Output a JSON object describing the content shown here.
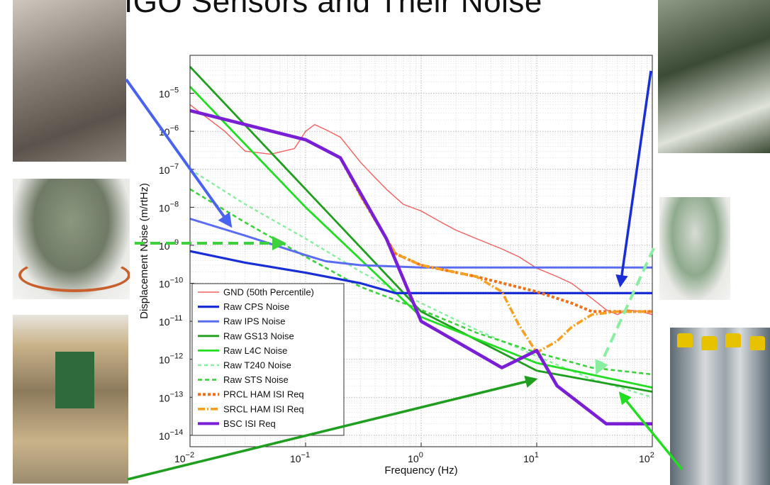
{
  "slide": {
    "title": "LIGO Sensors and Their Noise"
  },
  "photos": [
    {
      "name": "photo-gs13-seismometer",
      "colors": [
        "#8a8178",
        "#cfc7bd",
        "#5b534b"
      ]
    },
    {
      "name": "photo-sts-seismometer-dome",
      "colors": [
        "#6f7a66",
        "#8c977f",
        "#c7602c"
      ]
    },
    {
      "name": "photo-cps-electronics",
      "colors": [
        "#c9b38a",
        "#2f6b3a",
        "#8c7a5c"
      ]
    },
    {
      "name": "photo-t240-stack",
      "colors": [
        "#3b4a34",
        "#8e9a86",
        "#dfe3da"
      ]
    },
    {
      "name": "photo-t240-dome",
      "colors": [
        "#8eaa8d",
        "#d7dbd3",
        "#f3f3f1"
      ]
    },
    {
      "name": "photo-l4c-geophones",
      "colors": [
        "#9aa4aa",
        "#e7c200",
        "#5d6a73"
      ]
    }
  ],
  "chart_data": {
    "type": "line",
    "xlabel": "Frequency (Hz)",
    "ylabel": "Displacement Noise (m/rtHz)",
    "x_scale": "log",
    "y_scale": "log",
    "xlim": [
      0.01,
      100
    ],
    "ylim": [
      5e-15,
      0.0001
    ],
    "grid": true,
    "legend_position": "bottom-left",
    "x_ticks": [
      {
        "value": 0.01,
        "base": "10",
        "exp": "−2"
      },
      {
        "value": 0.1,
        "base": "10",
        "exp": "−1"
      },
      {
        "value": 1,
        "base": "10",
        "exp": "0"
      },
      {
        "value": 10,
        "base": "10",
        "exp": "1"
      },
      {
        "value": 100,
        "base": "10",
        "exp": "2"
      }
    ],
    "y_ticks": [
      {
        "value": 1e-14,
        "base": "10",
        "exp": "−14"
      },
      {
        "value": 1e-13,
        "base": "10",
        "exp": "−13"
      },
      {
        "value": 1e-12,
        "base": "10",
        "exp": "−12"
      },
      {
        "value": 1e-11,
        "base": "10",
        "exp": "−11"
      },
      {
        "value": 1e-10,
        "base": "10",
        "exp": "−10"
      },
      {
        "value": 1e-09,
        "base": "10",
        "exp": "−9"
      },
      {
        "value": 1e-08,
        "base": "10",
        "exp": "−8"
      },
      {
        "value": 1e-07,
        "base": "10",
        "exp": "−7"
      },
      {
        "value": 1e-06,
        "base": "10",
        "exp": "−6"
      },
      {
        "value": 1e-05,
        "base": "10",
        "exp": "−5"
      }
    ],
    "series": [
      {
        "name": "GND (50th Percentile)",
        "color": "#f06060",
        "width": 1.4,
        "dash": "",
        "x": [
          0.01,
          0.02,
          0.03,
          0.05,
          0.08,
          0.1,
          0.12,
          0.15,
          0.2,
          0.25,
          0.3,
          0.4,
          0.5,
          0.7,
          1,
          1.5,
          2,
          3,
          5,
          7,
          10,
          15,
          20,
          25,
          30,
          40,
          50,
          60,
          80,
          100
        ],
        "y": [
          5e-06,
          1e-06,
          3e-07,
          2.5e-07,
          3.5e-07,
          1e-06,
          1.5e-06,
          1.1e-06,
          7e-07,
          3e-07,
          1.5e-07,
          6e-08,
          3e-08,
          1.2e-08,
          8e-09,
          4e-09,
          2.5e-09,
          1.5e-09,
          8e-10,
          5e-10,
          2.5e-10,
          1.5e-10,
          1e-10,
          6e-11,
          4e-11,
          2e-11,
          1.5e-11,
          2e-11,
          1.8e-11,
          1.5e-11
        ]
      },
      {
        "name": "Raw CPS Noise",
        "color": "#1a2ed6",
        "width": 3.2,
        "dash": "",
        "x": [
          0.01,
          0.03,
          0.1,
          0.3,
          0.6,
          1,
          100
        ],
        "y": [
          7e-10,
          3.5e-10,
          1.9e-10,
          1e-10,
          5.5e-11,
          5.5e-11,
          5.5e-11
        ]
      },
      {
        "name": "Raw IPS Noise",
        "color": "#5a6cf0",
        "width": 3.0,
        "dash": "",
        "x": [
          0.01,
          0.03,
          0.1,
          0.15,
          0.3,
          1,
          100
        ],
        "y": [
          5e-09,
          1.8e-09,
          5.5e-10,
          3.8e-10,
          3e-10,
          2.6e-10,
          2.6e-10
        ]
      },
      {
        "name": "Raw GS13 Noise",
        "color": "#1f9e1f",
        "width": 2.8,
        "dash": "",
        "x": [
          0.01,
          0.1,
          1,
          10,
          100
        ],
        "y": [
          5e-05,
          3e-08,
          1.8e-11,
          5e-13,
          1.4e-13
        ]
      },
      {
        "name": "Raw L4C Noise",
        "color": "#22dd22",
        "width": 2.8,
        "dash": "",
        "x": [
          0.01,
          0.1,
          1,
          10,
          100
        ],
        "y": [
          1.5e-05,
          1e-08,
          1.3e-11,
          8e-13,
          1.8e-13
        ]
      },
      {
        "name": "Raw T240 Noise",
        "color": "#88eea0",
        "width": 2.4,
        "dash": "5,4",
        "x": [
          0.01,
          0.03,
          0.1,
          0.3,
          1,
          3,
          10,
          30,
          100
        ],
        "y": [
          1e-07,
          1.2e-08,
          1.5e-09,
          2e-10,
          3e-11,
          6e-12,
          1.2e-12,
          3e-13,
          1e-13
        ]
      },
      {
        "name": "Raw STS Noise",
        "color": "#3dd13d",
        "width": 2.6,
        "dash": "6,4",
        "x": [
          0.01,
          0.03,
          0.1,
          0.3,
          1,
          3,
          10,
          30,
          100
        ],
        "y": [
          3e-08,
          4e-09,
          5e-10,
          8e-11,
          2e-11,
          5e-12,
          1.5e-12,
          6e-13,
          4e-13
        ]
      },
      {
        "name": "PRCL HAM ISI Req",
        "color": "#f07018",
        "width": 4.0,
        "dash": "4,3",
        "x": [
          0.2,
          0.3,
          0.5,
          0.6,
          1,
          3,
          10,
          20,
          30,
          100
        ],
        "y": [
          2e-07,
          2e-08,
          1.5e-09,
          6e-10,
          3e-10,
          1.5e-10,
          6e-11,
          3e-11,
          1.8e-11,
          1.8e-11
        ]
      },
      {
        "name": "SRCL HAM ISI Req",
        "color": "#f5a020",
        "width": 3.6,
        "dash": "10,3,2,3",
        "x": [
          0.2,
          0.3,
          0.5,
          0.6,
          1,
          3,
          5,
          7,
          10,
          15,
          20,
          30,
          50,
          100
        ],
        "y": [
          2e-07,
          2e-08,
          1.5e-09,
          6e-10,
          3e-10,
          1.5e-10,
          6e-11,
          8e-12,
          1.5e-12,
          3e-12,
          7e-12,
          1.5e-11,
          1.8e-11,
          1.8e-11
        ]
      },
      {
        "name": "BSC ISI Req",
        "color": "#7a1fd6",
        "width": 4.6,
        "dash": "",
        "x": [
          0.01,
          0.1,
          0.2,
          0.5,
          1,
          5,
          10,
          15,
          40,
          100
        ],
        "y": [
          3.5e-06,
          6e-07,
          2e-07,
          1.5e-09,
          1e-11,
          6e-13,
          1.7e-12,
          2e-13,
          2e-14,
          2e-14
        ]
      }
    ]
  }
}
